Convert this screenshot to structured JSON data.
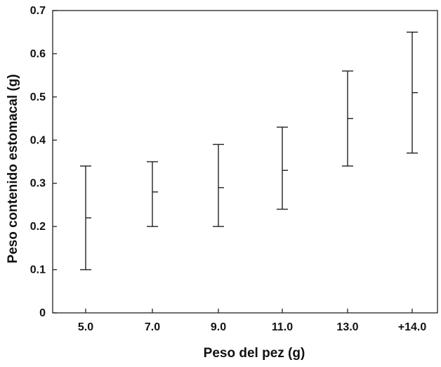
{
  "chart_data": {
    "type": "errorbar",
    "xlabel": "Peso del pez (g)",
    "ylabel": "Peso contenido estomacal (g)",
    "categories": [
      "5.0",
      "7.0",
      "9.0",
      "11.0",
      "13.0",
      "+14.0"
    ],
    "mean": [
      0.22,
      0.28,
      0.29,
      0.33,
      0.45,
      0.51
    ],
    "lower": [
      0.1,
      0.2,
      0.2,
      0.24,
      0.34,
      0.37
    ],
    "upper": [
      0.34,
      0.35,
      0.39,
      0.43,
      0.56,
      0.65
    ],
    "ylim": [
      0,
      0.7
    ],
    "yticks": [
      "0",
      "0.1",
      "0.2",
      "0.3",
      "0.4",
      "0.5",
      "0.6",
      "0.7"
    ],
    "grid": false,
    "legend": "none",
    "colors": {
      "ink": "#222222",
      "background": "#ffffff"
    }
  }
}
